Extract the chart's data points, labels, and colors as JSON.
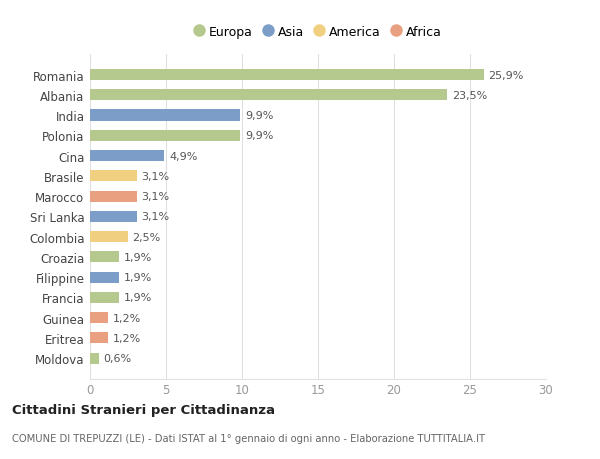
{
  "countries": [
    "Romania",
    "Albania",
    "India",
    "Polonia",
    "Cina",
    "Brasile",
    "Marocco",
    "Sri Lanka",
    "Colombia",
    "Croazia",
    "Filippine",
    "Francia",
    "Guinea",
    "Eritrea",
    "Moldova"
  ],
  "values": [
    25.9,
    23.5,
    9.9,
    9.9,
    4.9,
    3.1,
    3.1,
    3.1,
    2.5,
    1.9,
    1.9,
    1.9,
    1.2,
    1.2,
    0.6
  ],
  "labels": [
    "25,9%",
    "23,5%",
    "9,9%",
    "9,9%",
    "4,9%",
    "3,1%",
    "3,1%",
    "3,1%",
    "2,5%",
    "1,9%",
    "1,9%",
    "1,9%",
    "1,2%",
    "1,2%",
    "0,6%"
  ],
  "continents": [
    "Europa",
    "Europa",
    "Asia",
    "Europa",
    "Asia",
    "America",
    "Africa",
    "Asia",
    "America",
    "Europa",
    "Asia",
    "Europa",
    "Africa",
    "Africa",
    "Europa"
  ],
  "colors": {
    "Europa": "#b5c98e",
    "Asia": "#7b9dc7",
    "America": "#f0d080",
    "Africa": "#e8a080"
  },
  "legend_order": [
    "Europa",
    "Asia",
    "America",
    "Africa"
  ],
  "title": "Cittadini Stranieri per Cittadinanza",
  "subtitle": "COMUNE DI TREPUZZI (LE) - Dati ISTAT al 1° gennaio di ogni anno - Elaborazione TUTTITALIA.IT",
  "xlim": [
    0,
    30
  ],
  "xticks": [
    0,
    5,
    10,
    15,
    20,
    25,
    30
  ],
  "background_color": "#ffffff",
  "grid_color": "#e0e0e0"
}
